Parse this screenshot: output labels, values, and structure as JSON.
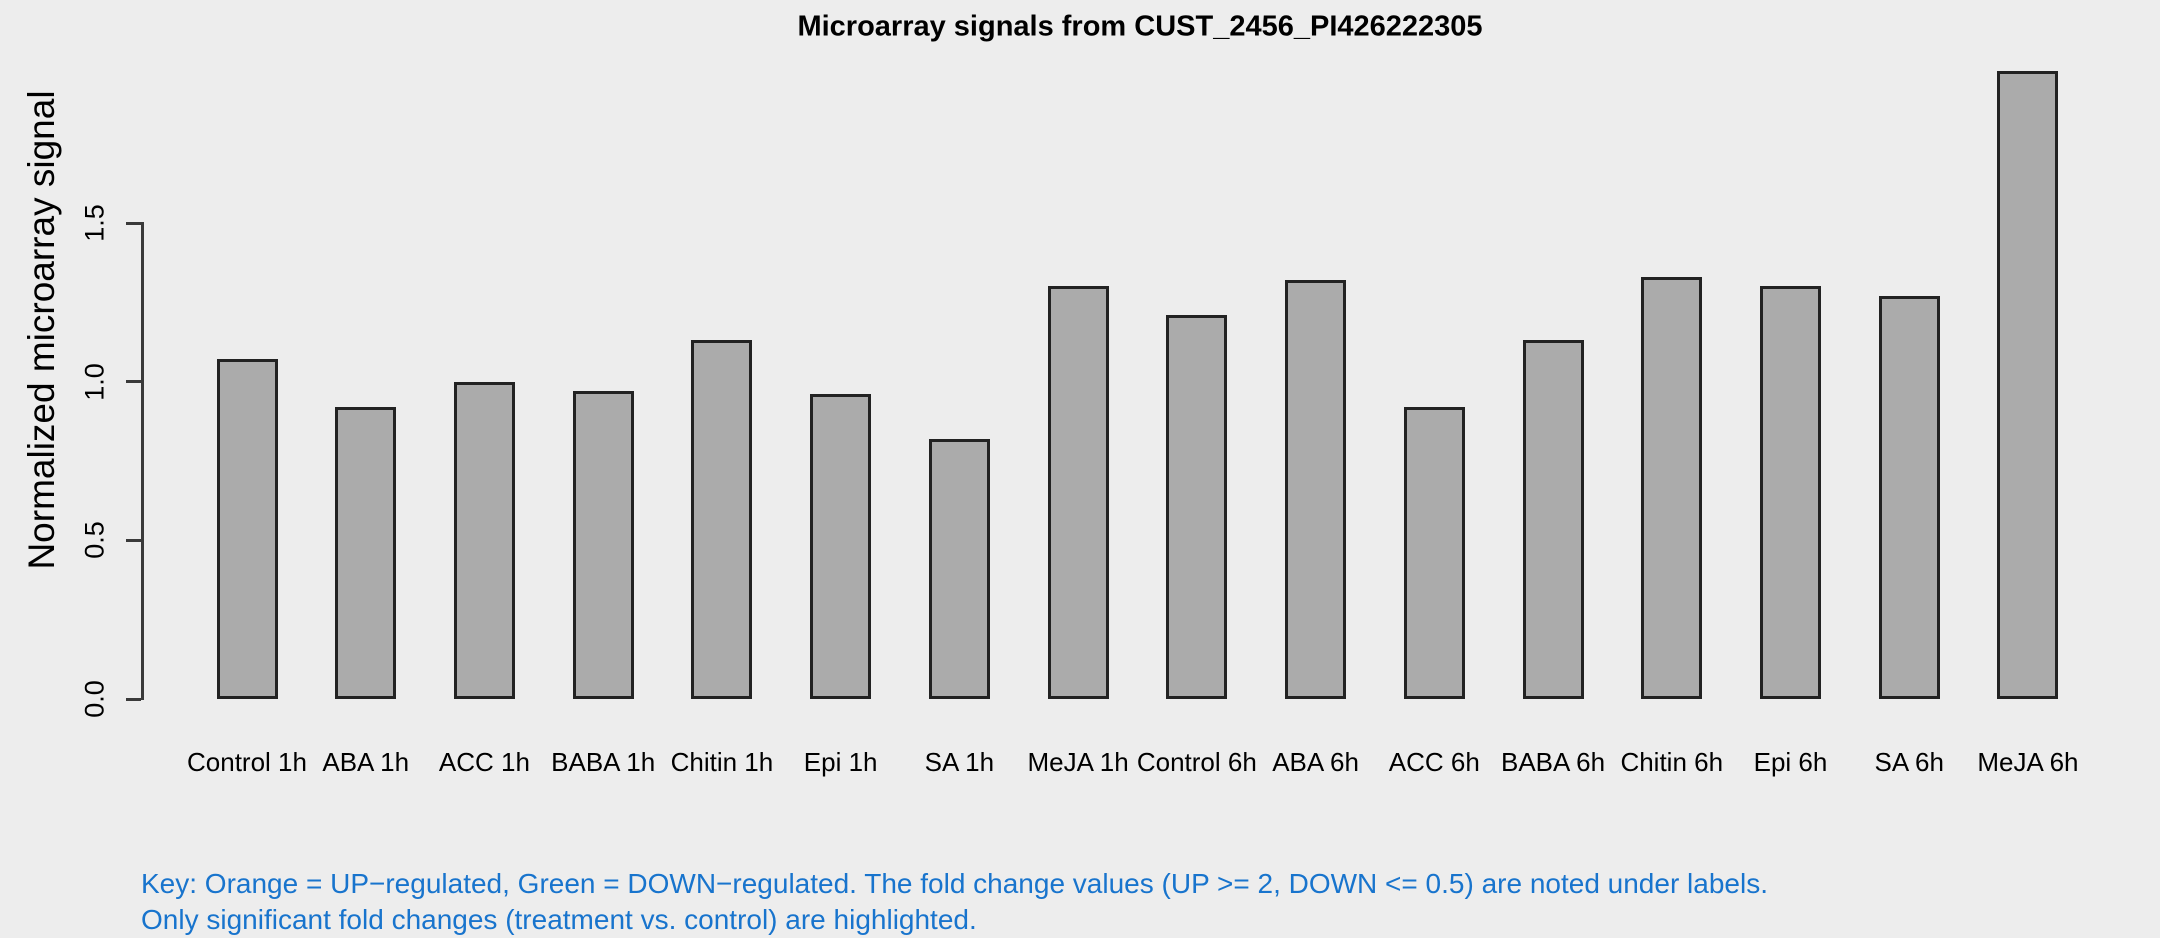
{
  "chart_data": {
    "type": "bar",
    "title": "Microarray signals from CUST_2456_PI426222305",
    "xlabel": "",
    "ylabel": "Normalized microarray signal",
    "categories": [
      "Control 1h",
      "ABA 1h",
      "ACC 1h",
      "BABA 1h",
      "Chitin 1h",
      "Epi 1h",
      "SA 1h",
      "MeJA 1h",
      "Control 6h",
      "ABA 6h",
      "ACC 6h",
      "BABA 6h",
      "Chitin 6h",
      "Epi 6h",
      "SA 6h",
      "MeJA 6h"
    ],
    "values": [
      1.07,
      0.92,
      1.0,
      0.97,
      1.13,
      0.96,
      0.82,
      1.3,
      1.21,
      1.32,
      0.92,
      1.13,
      1.33,
      1.3,
      1.27,
      1.98
    ],
    "yticks": [
      0.0,
      0.5,
      1.0,
      1.5
    ],
    "ytick_labels": [
      "0.0",
      "0.5",
      "1.0",
      "1.5"
    ],
    "ylim": [
      0,
      2.0
    ],
    "grid": false,
    "legend": "none",
    "colors": {
      "background": "#EDEDED",
      "bar_fill": "#ABABAB",
      "bar_border": "#222222",
      "axis": "#3a3a3a",
      "text": "#000000"
    }
  },
  "footer": {
    "line1": "Key: Orange = UP−regulated, Green = DOWN−regulated. The fold change values (UP >= 2, DOWN <= 0.5) are noted under labels.",
    "line2": "Only significant fold changes (treatment vs. control) are highlighted.",
    "color": "#1874CD"
  }
}
